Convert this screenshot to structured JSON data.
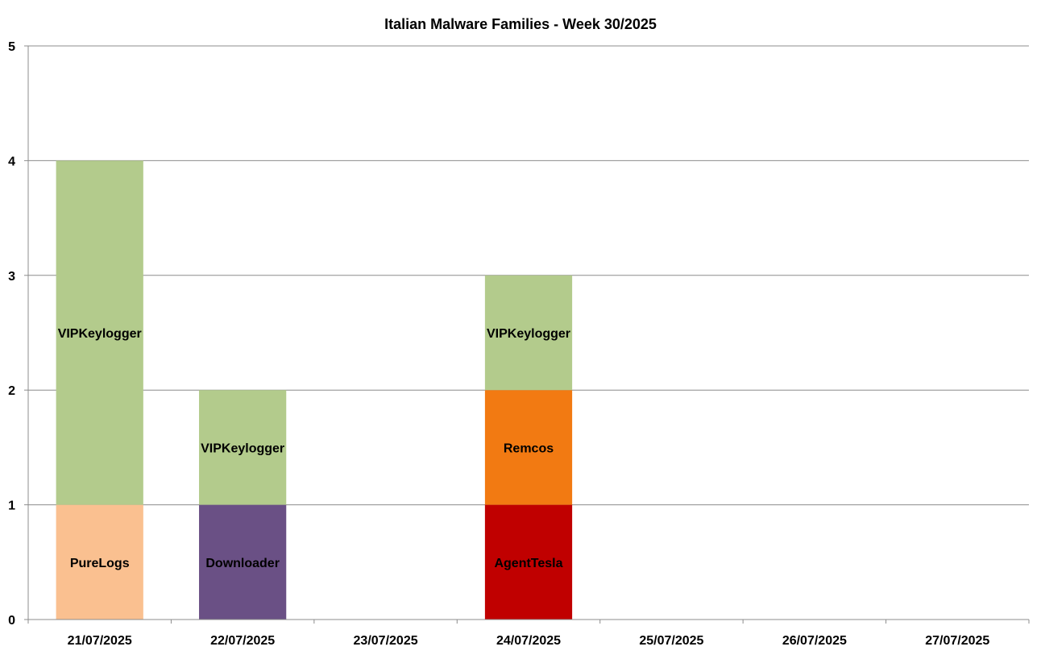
{
  "chart_data": {
    "type": "bar",
    "stacked": true,
    "title": "Italian Malware Families - Week 30/2025",
    "xlabel": "",
    "ylabel": "",
    "ylim": [
      0,
      5
    ],
    "yticks": [
      "0",
      "1",
      "2",
      "3",
      "4",
      "5"
    ],
    "grid": true,
    "legend": "none",
    "categories": [
      "21/07/2025",
      "22/07/2025",
      "23/07/2025",
      "24/07/2025",
      "25/07/2025",
      "26/07/2025",
      "27/07/2025"
    ],
    "stacks": [
      [
        {
          "label": "PureLogs",
          "value": 1,
          "color": "#fac090"
        },
        {
          "label": "VIPKeylogger",
          "value": 3,
          "color": "#b3cb8c"
        }
      ],
      [
        {
          "label": "Downloader",
          "value": 1,
          "color": "#6a5085"
        },
        {
          "label": "VIPKeylogger",
          "value": 1,
          "color": "#b3cb8c"
        }
      ],
      [],
      [
        {
          "label": "AgentTesla",
          "value": 1,
          "color": "#c00000"
        },
        {
          "label": "Remcos",
          "value": 1,
          "color": "#f27a12"
        },
        {
          "label": "VIPKeylogger",
          "value": 1,
          "color": "#b3cb8c"
        }
      ],
      [],
      [],
      []
    ]
  }
}
